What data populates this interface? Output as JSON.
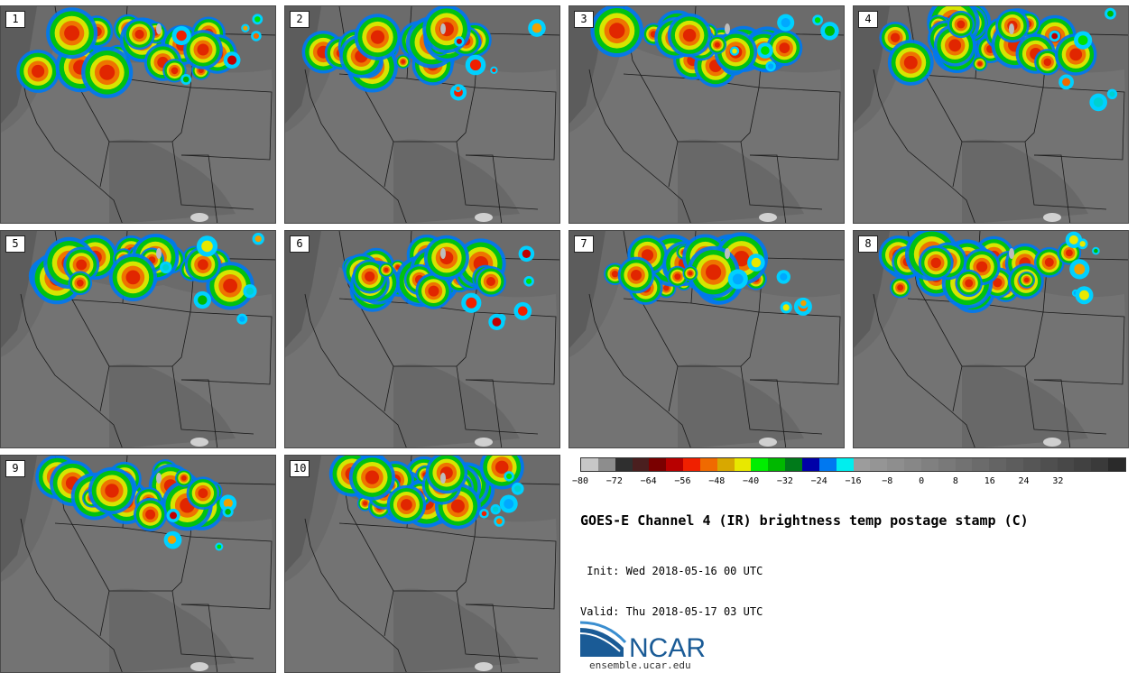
{
  "stamps": [
    {
      "label": "1"
    },
    {
      "label": "2"
    },
    {
      "label": "3"
    },
    {
      "label": "4"
    },
    {
      "label": "5"
    },
    {
      "label": "6"
    },
    {
      "label": "7"
    },
    {
      "label": "8"
    },
    {
      "label": "9"
    },
    {
      "label": "10"
    }
  ],
  "colorbar": {
    "colors": [
      "#c7c7c7",
      "#8d8d8d",
      "#2f2f2f",
      "#4a1f1f",
      "#7a0000",
      "#b80000",
      "#f02000",
      "#f06a00",
      "#d8a800",
      "#e8e800",
      "#00ee00",
      "#00b800",
      "#007a1a",
      "#0000a8",
      "#0078f0",
      "#00eeee",
      "#9c9c9c",
      "#959595",
      "#8e8e8e",
      "#878787",
      "#808080",
      "#797979",
      "#727272",
      "#6b6b6b",
      "#646464",
      "#5d5d5d",
      "#565656",
      "#4f4f4f",
      "#484848",
      "#414141",
      "#3a3a3a",
      "#2a2a2a"
    ],
    "ticks": [
      "−80",
      "−72",
      "−64",
      "−56",
      "−48",
      "−40",
      "−32",
      "−24",
      "−16",
      "−8",
      "0",
      "8",
      "16",
      "24",
      "32"
    ]
  },
  "title": "GOES-E Channel 4 (IR) brightness temp postage stamp (C)",
  "init_line": " Init: Wed 2018-05-16 00 UTC",
  "valid_line": "Valid: Thu 2018-05-17 03 UTC",
  "logo_text": "NCAR",
  "website": "ensemble.ucar.edu",
  "colors": {
    "ncar_blue": "#1a5b96",
    "ncar_light": "#3a8ed0"
  }
}
